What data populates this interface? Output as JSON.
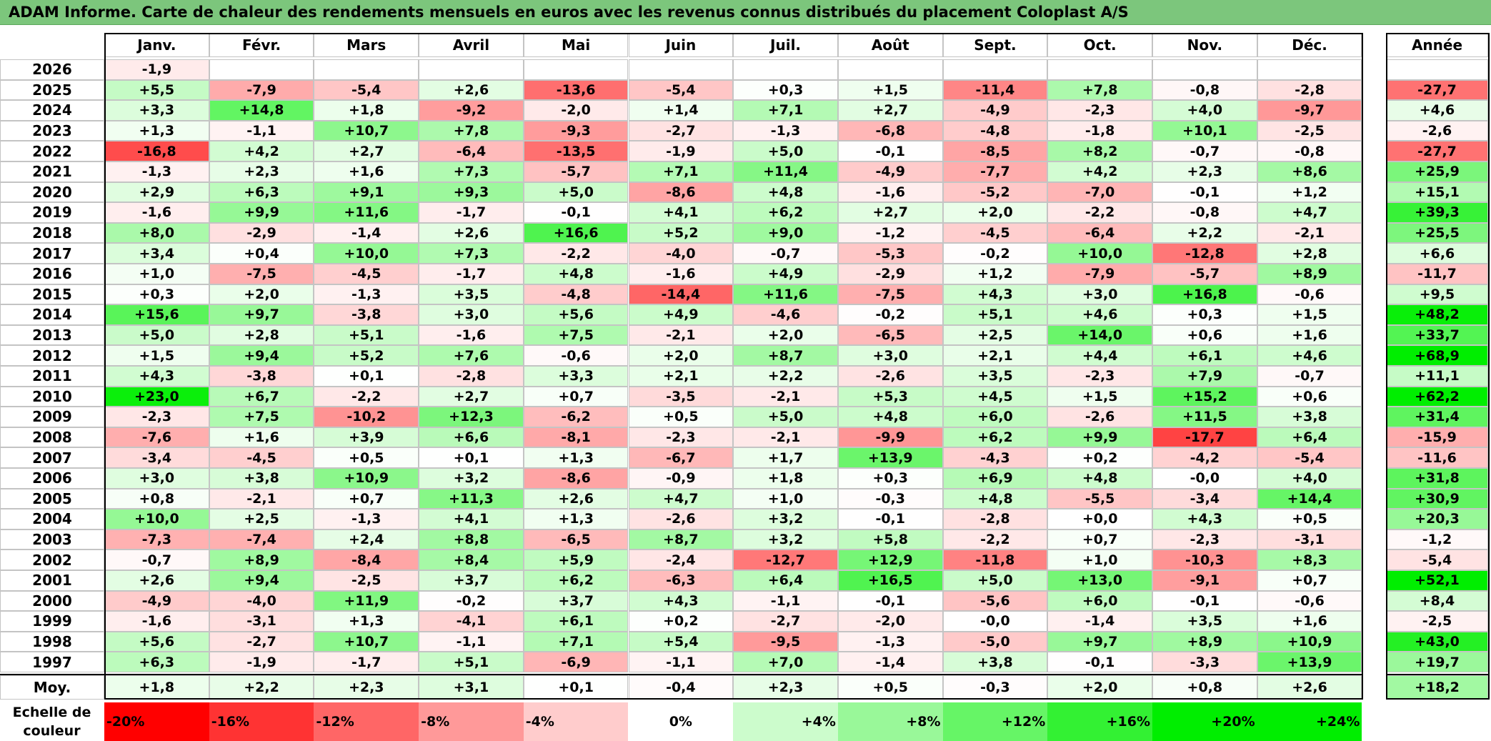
{
  "title": "ADAM Informe. Carte de chaleur des rendements mensuels en euros avec les revenus connus distribués du placement Coloplast A/S",
  "chart_data": {
    "type": "heatmap",
    "title": "ADAM Informe. Carte de chaleur des rendements mensuels en euros avec les revenus connus distribués du placement Coloplast A/S",
    "columns": [
      "Janv.",
      "Févr.",
      "Mars",
      "Avril",
      "Mai",
      "Juin",
      "Juil.",
      "Août",
      "Sept.",
      "Oct.",
      "Nov.",
      "Déc."
    ],
    "year_column": "Année",
    "rows": [
      {
        "year": "2026",
        "months": [
          "-1,9",
          "",
          "",
          "",
          "",
          "",
          "",
          "",
          "",
          "",
          "",
          ""
        ],
        "annual": ""
      },
      {
        "year": "2025",
        "months": [
          "+5,5",
          "-7,9",
          "-5,4",
          "+2,6",
          "-13,6",
          "-5,4",
          "+0,3",
          "+1,5",
          "-11,4",
          "+7,8",
          "-0,8",
          "-2,8"
        ],
        "annual": "-27,7"
      },
      {
        "year": "2024",
        "months": [
          "+3,3",
          "+14,8",
          "+1,8",
          "-9,2",
          "-2,0",
          "+1,4",
          "+7,1",
          "+2,7",
          "-4,9",
          "-2,3",
          "+4,0",
          "-9,7"
        ],
        "annual": "+4,6"
      },
      {
        "year": "2023",
        "months": [
          "+1,3",
          "-1,1",
          "+10,7",
          "+7,8",
          "-9,3",
          "-2,7",
          "-1,3",
          "-6,8",
          "-4,8",
          "-1,8",
          "+10,1",
          "-2,5"
        ],
        "annual": "-2,6"
      },
      {
        "year": "2022",
        "months": [
          "-16,8",
          "+4,2",
          "+2,7",
          "-6,4",
          "-13,5",
          "-1,9",
          "+5,0",
          "-0,1",
          "-8,5",
          "+8,2",
          "-0,7",
          "-0,8"
        ],
        "annual": "-27,7"
      },
      {
        "year": "2021",
        "months": [
          "-1,3",
          "+2,3",
          "+1,6",
          "+7,3",
          "-5,7",
          "+7,1",
          "+11,4",
          "-4,9",
          "-7,7",
          "+4,2",
          "+2,3",
          "+8,6"
        ],
        "annual": "+25,9"
      },
      {
        "year": "2020",
        "months": [
          "+2,9",
          "+6,3",
          "+9,1",
          "+9,3",
          "+5,0",
          "-8,6",
          "+4,8",
          "-1,6",
          "-5,2",
          "-7,0",
          "-0,1",
          "+1,2"
        ],
        "annual": "+15,1"
      },
      {
        "year": "2019",
        "months": [
          "-1,6",
          "+9,9",
          "+11,6",
          "-1,7",
          "-0,1",
          "+4,1",
          "+6,2",
          "+2,7",
          "+2,0",
          "-2,2",
          "-0,8",
          "+4,7"
        ],
        "annual": "+39,3"
      },
      {
        "year": "2018",
        "months": [
          "+8,0",
          "-2,9",
          "-1,4",
          "+2,6",
          "+16,6",
          "+5,2",
          "+9,0",
          "-1,2",
          "-4,5",
          "-6,4",
          "+2,2",
          "-2,1"
        ],
        "annual": "+25,5"
      },
      {
        "year": "2017",
        "months": [
          "+3,4",
          "+0,4",
          "+10,0",
          "+7,3",
          "-2,2",
          "-4,0",
          "-0,7",
          "-5,3",
          "-0,2",
          "+10,0",
          "-12,8",
          "+2,8"
        ],
        "annual": "+6,6"
      },
      {
        "year": "2016",
        "months": [
          "+1,0",
          "-7,5",
          "-4,5",
          "-1,7",
          "+4,8",
          "-1,6",
          "+4,9",
          "-2,9",
          "+1,2",
          "-7,9",
          "-5,7",
          "+8,9"
        ],
        "annual": "-11,7"
      },
      {
        "year": "2015",
        "months": [
          "+0,3",
          "+2,0",
          "-1,3",
          "+3,5",
          "-4,8",
          "-14,4",
          "+11,6",
          "-7,5",
          "+4,3",
          "+3,0",
          "+16,8",
          "-0,6"
        ],
        "annual": "+9,5"
      },
      {
        "year": "2014",
        "months": [
          "+15,6",
          "+9,7",
          "-3,8",
          "+3,0",
          "+5,6",
          "+4,9",
          "-4,6",
          "-0,2",
          "+5,1",
          "+4,6",
          "+0,3",
          "+1,5"
        ],
        "annual": "+48,2"
      },
      {
        "year": "2013",
        "months": [
          "+5,0",
          "+2,8",
          "+5,1",
          "-1,6",
          "+7,5",
          "-2,1",
          "+2,0",
          "-6,5",
          "+2,5",
          "+14,0",
          "+0,6",
          "+1,6"
        ],
        "annual": "+33,7"
      },
      {
        "year": "2012",
        "months": [
          "+1,5",
          "+9,4",
          "+5,2",
          "+7,6",
          "-0,6",
          "+2,0",
          "+8,7",
          "+3,0",
          "+2,1",
          "+4,4",
          "+6,1",
          "+4,6"
        ],
        "annual": "+68,9"
      },
      {
        "year": "2011",
        "months": [
          "+4,3",
          "-3,8",
          "+0,1",
          "-2,8",
          "+3,3",
          "+2,1",
          "+2,2",
          "-2,6",
          "+3,5",
          "-2,3",
          "+7,9",
          "-0,7"
        ],
        "annual": "+11,1"
      },
      {
        "year": "2010",
        "months": [
          "+23,0",
          "+6,7",
          "-2,2",
          "+2,7",
          "+0,7",
          "-3,5",
          "-2,1",
          "+5,3",
          "+4,5",
          "+1,5",
          "+15,2",
          "+0,6"
        ],
        "annual": "+62,2"
      },
      {
        "year": "2009",
        "months": [
          "-2,3",
          "+7,5",
          "-10,2",
          "+12,3",
          "-6,2",
          "+0,5",
          "+5,0",
          "+4,8",
          "+6,0",
          "-2,6",
          "+11,5",
          "+3,8"
        ],
        "annual": "+31,4"
      },
      {
        "year": "2008",
        "months": [
          "-7,6",
          "+1,6",
          "+3,9",
          "+6,6",
          "-8,1",
          "-2,3",
          "-2,1",
          "-9,9",
          "+6,2",
          "+9,9",
          "-17,7",
          "+6,4"
        ],
        "annual": "-15,9"
      },
      {
        "year": "2007",
        "months": [
          "-3,4",
          "-4,5",
          "+0,5",
          "+0,1",
          "+1,3",
          "-6,7",
          "+1,7",
          "+13,9",
          "-4,3",
          "+0,2",
          "-4,2",
          "-5,4"
        ],
        "annual": "-11,6"
      },
      {
        "year": "2006",
        "months": [
          "+3,0",
          "+3,8",
          "+10,9",
          "+3,2",
          "-8,6",
          "-0,9",
          "+1,8",
          "+0,3",
          "+6,9",
          "+4,8",
          "-0,0",
          "+4,0"
        ],
        "annual": "+31,8"
      },
      {
        "year": "2005",
        "months": [
          "+0,8",
          "-2,1",
          "+0,7",
          "+11,3",
          "+2,6",
          "+4,7",
          "+1,0",
          "-0,3",
          "+4,8",
          "-5,5",
          "-3,4",
          "+14,4"
        ],
        "annual": "+30,9"
      },
      {
        "year": "2004",
        "months": [
          "+10,0",
          "+2,5",
          "-1,3",
          "+4,1",
          "+1,3",
          "-2,6",
          "+3,2",
          "-0,1",
          "-2,8",
          "+0,0",
          "+4,3",
          "+0,5"
        ],
        "annual": "+20,3"
      },
      {
        "year": "2003",
        "months": [
          "-7,3",
          "-7,4",
          "+2,4",
          "+8,8",
          "-6,5",
          "+8,7",
          "+3,2",
          "+5,8",
          "-2,2",
          "+0,7",
          "-2,3",
          "-3,1"
        ],
        "annual": "-1,2"
      },
      {
        "year": "2002",
        "months": [
          "-0,7",
          "+8,9",
          "-8,4",
          "+8,4",
          "+5,9",
          "-2,4",
          "-12,7",
          "+12,9",
          "-11,8",
          "+1,0",
          "-10,3",
          "+8,3"
        ],
        "annual": "-5,4"
      },
      {
        "year": "2001",
        "months": [
          "+2,6",
          "+9,4",
          "-2,5",
          "+3,7",
          "+6,2",
          "-6,3",
          "+6,4",
          "+16,5",
          "+5,0",
          "+13,0",
          "-9,1",
          "+0,7"
        ],
        "annual": "+52,1"
      },
      {
        "year": "2000",
        "months": [
          "-4,9",
          "-4,0",
          "+11,9",
          "-0,2",
          "+3,7",
          "+4,3",
          "-1,1",
          "-0,1",
          "-5,6",
          "+6,0",
          "-0,1",
          "-0,6"
        ],
        "annual": "+8,4"
      },
      {
        "year": "1999",
        "months": [
          "-1,6",
          "-3,1",
          "+1,3",
          "-4,1",
          "+6,1",
          "+0,2",
          "-2,7",
          "-2,0",
          "-0,0",
          "-1,4",
          "+3,5",
          "+1,6"
        ],
        "annual": "-2,5"
      },
      {
        "year": "1998",
        "months": [
          "+5,6",
          "-2,7",
          "+10,7",
          "-1,1",
          "+7,1",
          "+5,4",
          "-9,5",
          "-1,3",
          "-5,0",
          "+9,7",
          "+8,9",
          "+10,9"
        ],
        "annual": "+43,0"
      },
      {
        "year": "1997",
        "months": [
          "+6,3",
          "-1,9",
          "-1,7",
          "+5,1",
          "-6,9",
          "-1,1",
          "+7,0",
          "-1,4",
          "+3,8",
          "-0,1",
          "-3,3",
          "+13,9"
        ],
        "annual": "+19,7"
      }
    ],
    "average": {
      "label": "Moy.",
      "months": [
        "+1,8",
        "+2,2",
        "+2,3",
        "+3,1",
        "+0,1",
        "-0,4",
        "+2,3",
        "+0,5",
        "-0,3",
        "+2,0",
        "+0,8",
        "+2,6"
      ],
      "annual": "+18,2"
    },
    "color_scale": {
      "label": "Echelle de couleur",
      "stops": [
        "-20%",
        "-16%",
        "-12%",
        "-8%",
        "-4%",
        "0%",
        "+4%",
        "+8%",
        "+12%",
        "+16%",
        "+20%",
        "+24%"
      ],
      "negative_color": "#ff0000",
      "neutral_color": "#ffffff",
      "positive_color": "#00ee00"
    }
  }
}
